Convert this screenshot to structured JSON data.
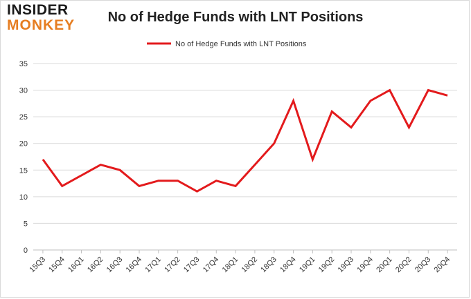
{
  "logo": {
    "line1": "INSIDER",
    "line2": "MONKEY"
  },
  "chart_data": {
    "type": "line",
    "title": "No of Hedge Funds with LNT Positions",
    "xlabel": "",
    "ylabel": "",
    "categories": [
      "15Q3",
      "15Q4",
      "16Q1",
      "16Q2",
      "16Q3",
      "16Q4",
      "17Q1",
      "17Q2",
      "17Q3",
      "17Q4",
      "18Q1",
      "18Q2",
      "18Q3",
      "18Q4",
      "19Q1",
      "19Q2",
      "19Q3",
      "19Q4",
      "20Q1",
      "20Q2",
      "20Q3",
      "20Q4"
    ],
    "series": [
      {
        "name": "No of Hedge Funds with LNT Positions",
        "color": "#e31a1c",
        "values": [
          17,
          12,
          14,
          16,
          15,
          12,
          13,
          13,
          11,
          13,
          12,
          16,
          20,
          28,
          17,
          26,
          23,
          28,
          30,
          23,
          30,
          29
        ]
      }
    ],
    "ylim": [
      0,
      35
    ],
    "yticks": [
      0,
      5,
      10,
      15,
      20,
      25,
      30,
      35
    ],
    "grid": true,
    "legend_position": "top-center"
  }
}
